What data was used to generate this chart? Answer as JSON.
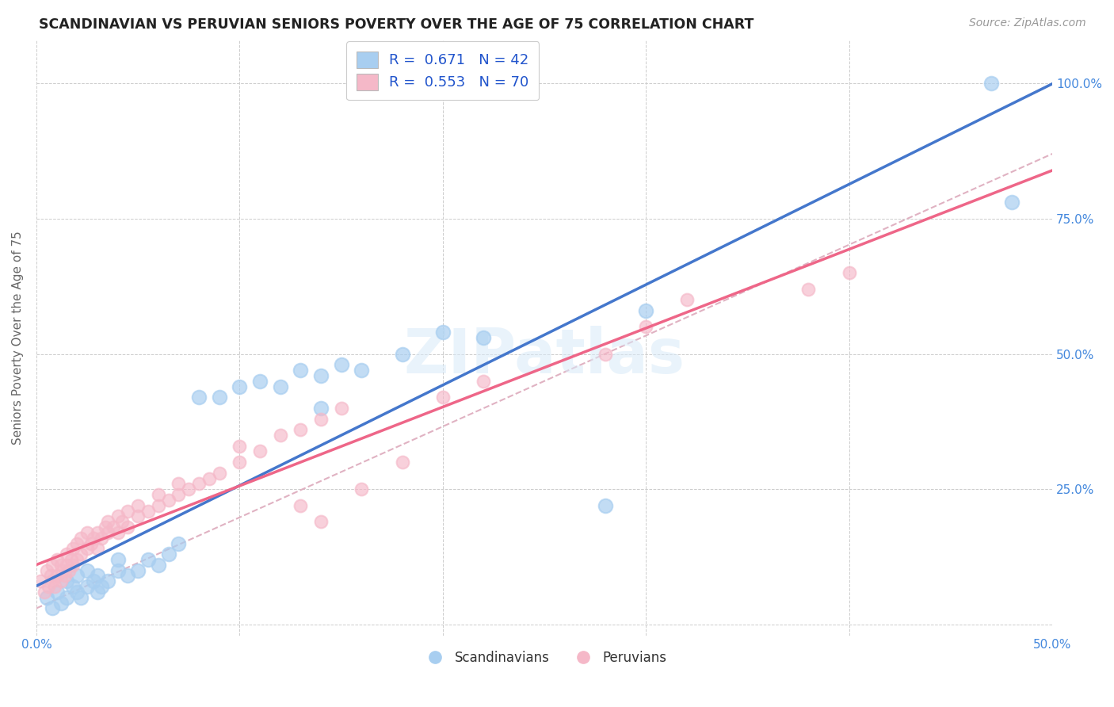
{
  "title": "SCANDINAVIAN VS PERUVIAN SENIORS POVERTY OVER THE AGE OF 75 CORRELATION CHART",
  "source": "Source: ZipAtlas.com",
  "ylabel": "Seniors Poverty Over the Age of 75",
  "xlim": [
    0.0,
    0.5
  ],
  "ylim": [
    -0.02,
    1.08
  ],
  "watermark": "ZIPatlas",
  "scandinavian_color": "#A8CEF0",
  "peruvian_color": "#F5B8C8",
  "line_blue": "#4477CC",
  "line_pink": "#EE6688",
  "line_dashed_color": "#DDAABC",
  "R_scand": 0.671,
  "N_scand": 42,
  "R_peru": 0.553,
  "N_peru": 70,
  "scand_x": [
    0.005,
    0.008,
    0.01,
    0.012,
    0.015,
    0.015,
    0.018,
    0.02,
    0.02,
    0.022,
    0.025,
    0.025,
    0.028,
    0.03,
    0.03,
    0.032,
    0.035,
    0.04,
    0.04,
    0.045,
    0.05,
    0.055,
    0.06,
    0.065,
    0.07,
    0.08,
    0.09,
    0.1,
    0.11,
    0.12,
    0.13,
    0.14,
    0.15,
    0.16,
    0.18,
    0.2,
    0.22,
    0.14,
    0.28,
    0.3,
    0.47,
    0.48
  ],
  "scand_y": [
    0.05,
    0.03,
    0.06,
    0.04,
    0.08,
    0.05,
    0.07,
    0.06,
    0.09,
    0.05,
    0.07,
    0.1,
    0.08,
    0.06,
    0.09,
    0.07,
    0.08,
    0.1,
    0.12,
    0.09,
    0.1,
    0.12,
    0.11,
    0.13,
    0.15,
    0.42,
    0.42,
    0.44,
    0.45,
    0.44,
    0.47,
    0.46,
    0.48,
    0.47,
    0.5,
    0.54,
    0.53,
    0.4,
    0.22,
    0.58,
    1.0,
    0.78
  ],
  "peru_x": [
    0.002,
    0.004,
    0.005,
    0.006,
    0.007,
    0.008,
    0.008,
    0.009,
    0.01,
    0.01,
    0.012,
    0.012,
    0.013,
    0.014,
    0.015,
    0.015,
    0.016,
    0.017,
    0.018,
    0.018,
    0.02,
    0.02,
    0.022,
    0.022,
    0.025,
    0.025,
    0.027,
    0.028,
    0.03,
    0.03,
    0.032,
    0.034,
    0.035,
    0.035,
    0.038,
    0.04,
    0.04,
    0.042,
    0.045,
    0.045,
    0.05,
    0.05,
    0.055,
    0.06,
    0.06,
    0.065,
    0.07,
    0.07,
    0.075,
    0.08,
    0.085,
    0.09,
    0.1,
    0.1,
    0.11,
    0.12,
    0.13,
    0.14,
    0.15,
    0.16,
    0.18,
    0.2,
    0.22,
    0.13,
    0.14,
    0.28,
    0.3,
    0.32,
    0.38,
    0.4
  ],
  "peru_y": [
    0.08,
    0.06,
    0.1,
    0.07,
    0.09,
    0.08,
    0.11,
    0.07,
    0.09,
    0.12,
    0.08,
    0.11,
    0.1,
    0.09,
    0.11,
    0.13,
    0.1,
    0.12,
    0.11,
    0.14,
    0.12,
    0.15,
    0.13,
    0.16,
    0.14,
    0.17,
    0.15,
    0.16,
    0.14,
    0.17,
    0.16,
    0.18,
    0.17,
    0.19,
    0.18,
    0.17,
    0.2,
    0.19,
    0.18,
    0.21,
    0.2,
    0.22,
    0.21,
    0.22,
    0.24,
    0.23,
    0.24,
    0.26,
    0.25,
    0.26,
    0.27,
    0.28,
    0.3,
    0.33,
    0.32,
    0.35,
    0.36,
    0.38,
    0.4,
    0.25,
    0.3,
    0.42,
    0.45,
    0.22,
    0.19,
    0.5,
    0.55,
    0.6,
    0.62,
    0.65
  ],
  "background_color": "#FFFFFF",
  "grid_color": "#CCCCCC"
}
